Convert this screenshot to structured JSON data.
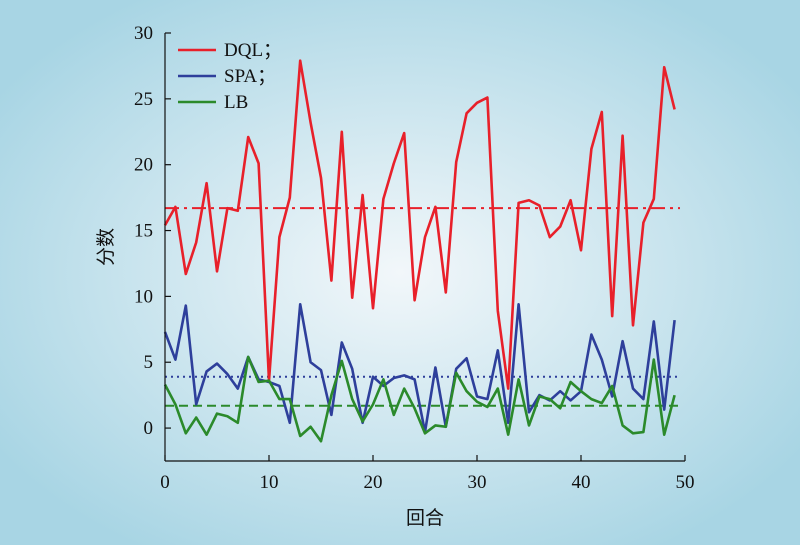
{
  "chart_data": {
    "type": "line",
    "title": "",
    "xlabel": "回合",
    "ylabel": "分数",
    "xlim": [
      0,
      50
    ],
    "ylim": [
      -2.5,
      30
    ],
    "xticks": [
      0,
      10,
      20,
      30,
      40,
      50
    ],
    "xtick_labels": [
      "0",
      "10",
      "20",
      "30",
      "40",
      "50"
    ],
    "yticks": [
      0,
      5,
      10,
      15,
      20,
      25,
      30
    ],
    "ytick_labels": [
      "0",
      "5",
      "10",
      "15",
      "20",
      "25",
      "30"
    ],
    "grid": false,
    "legend_position": "top-left",
    "x": [
      0,
      1,
      2,
      3,
      4,
      5,
      6,
      7,
      8,
      9,
      10,
      11,
      12,
      13,
      14,
      15,
      16,
      17,
      18,
      19,
      20,
      21,
      22,
      23,
      24,
      25,
      26,
      27,
      28,
      29,
      30,
      31,
      32,
      33,
      34,
      35,
      36,
      37,
      38,
      39,
      40,
      41,
      42,
      43,
      44,
      45,
      46,
      47,
      48,
      49
    ],
    "series": [
      {
        "name": "DQL；",
        "color": "#e8202a",
        "values": [
          15.4,
          16.8,
          11.7,
          14.1,
          18.6,
          11.9,
          16.7,
          16.5,
          22.1,
          20.1,
          3.6,
          14.5,
          17.5,
          27.9,
          23.2,
          19.0,
          11.2,
          22.5,
          9.9,
          17.7,
          9.1,
          17.4,
          20.1,
          22.4,
          9.7,
          14.5,
          16.8,
          10.3,
          20.2,
          23.9,
          24.7,
          25.1,
          8.9,
          3.0,
          17.1,
          17.3,
          16.9,
          14.5,
          15.3,
          17.3,
          13.5,
          21.2,
          24.0,
          8.5,
          22.2,
          7.8,
          15.6,
          17.4,
          27.4,
          24.2
        ]
      },
      {
        "name": "SPA；",
        "color": "#2e3f9b",
        "values": [
          7.3,
          5.2,
          9.3,
          1.8,
          4.3,
          4.9,
          4.1,
          3.0,
          5.4,
          3.7,
          3.5,
          3.2,
          0.4,
          9.4,
          5.0,
          4.4,
          1.0,
          6.5,
          4.5,
          0.4,
          3.9,
          3.2,
          3.8,
          4.0,
          3.7,
          -0.3,
          4.6,
          0.1,
          4.5,
          5.3,
          2.4,
          2.2,
          5.9,
          0.4,
          9.4,
          1.2,
          2.5,
          2.1,
          2.8,
          2.1,
          2.8,
          7.1,
          5.2,
          2.4,
          6.6,
          3.0,
          2.2,
          8.1,
          1.4,
          8.2
        ]
      },
      {
        "name": "LB",
        "color": "#2b8a2b",
        "values": [
          3.3,
          1.8,
          -0.4,
          0.8,
          -0.5,
          1.1,
          0.9,
          0.4,
          5.4,
          3.5,
          3.6,
          2.2,
          2.2,
          -0.6,
          0.1,
          -1.0,
          2.5,
          5.1,
          2.2,
          0.5,
          1.8,
          3.7,
          1.0,
          3.0,
          1.5,
          -0.4,
          0.2,
          0.1,
          4.2,
          2.8,
          2.0,
          1.6,
          3.0,
          -0.5,
          3.7,
          0.2,
          2.4,
          2.2,
          1.5,
          3.5,
          2.8,
          2.2,
          1.9,
          3.2,
          0.2,
          -0.4,
          -0.3,
          5.2,
          -0.5,
          2.5
        ]
      }
    ],
    "reference_lines": [
      {
        "series": "DQL；",
        "y": 16.7,
        "style": "dash-dot",
        "color": "#e8202a"
      },
      {
        "series": "SPA；",
        "y": 3.9,
        "style": "dotted",
        "color": "#2e3f9b"
      },
      {
        "series": "LB",
        "y": 1.7,
        "style": "dashed",
        "color": "#2b8a2b"
      }
    ],
    "background": {
      "inner": "#f2f7fa",
      "outer": "#a8d5e4"
    }
  }
}
